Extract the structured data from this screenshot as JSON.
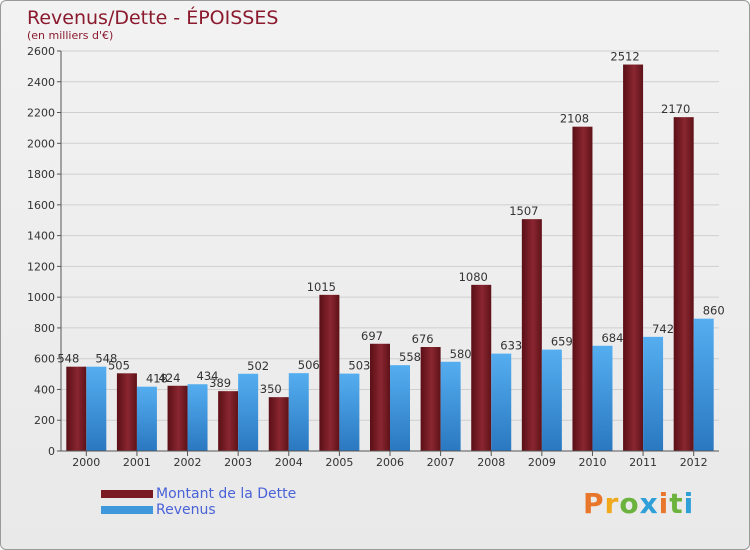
{
  "title": "Revenus/Dette - ÉPOISSES",
  "subtitle": "(en milliers d'€)",
  "brand": "Proxiti",
  "chart_data": {
    "type": "bar",
    "title": "Revenus/Dette - ÉPOISSES",
    "ylabel": "(en milliers d'€)",
    "xlabel": "",
    "ylim": [
      0,
      2600
    ],
    "yticks": [
      0,
      200,
      400,
      600,
      800,
      1000,
      1200,
      1400,
      1600,
      1800,
      2000,
      2200,
      2400,
      2600
    ],
    "grid": true,
    "legend_position": "bottom-left",
    "categories": [
      "2000",
      "2001",
      "2002",
      "2003",
      "2004",
      "2005",
      "2006",
      "2007",
      "2008",
      "2009",
      "2010",
      "2011",
      "2012"
    ],
    "series": [
      {
        "name": "Montant de la Dette",
        "color": "#7a1a22",
        "values": [
          548,
          505,
          424,
          389,
          350,
          1015,
          697,
          676,
          1080,
          1507,
          2108,
          2512,
          2170
        ]
      },
      {
        "name": "Revenus",
        "color": "#3f98dc",
        "values": [
          548,
          418,
          434,
          502,
          506,
          503,
          558,
          580,
          633,
          659,
          684,
          742,
          860
        ]
      }
    ]
  }
}
